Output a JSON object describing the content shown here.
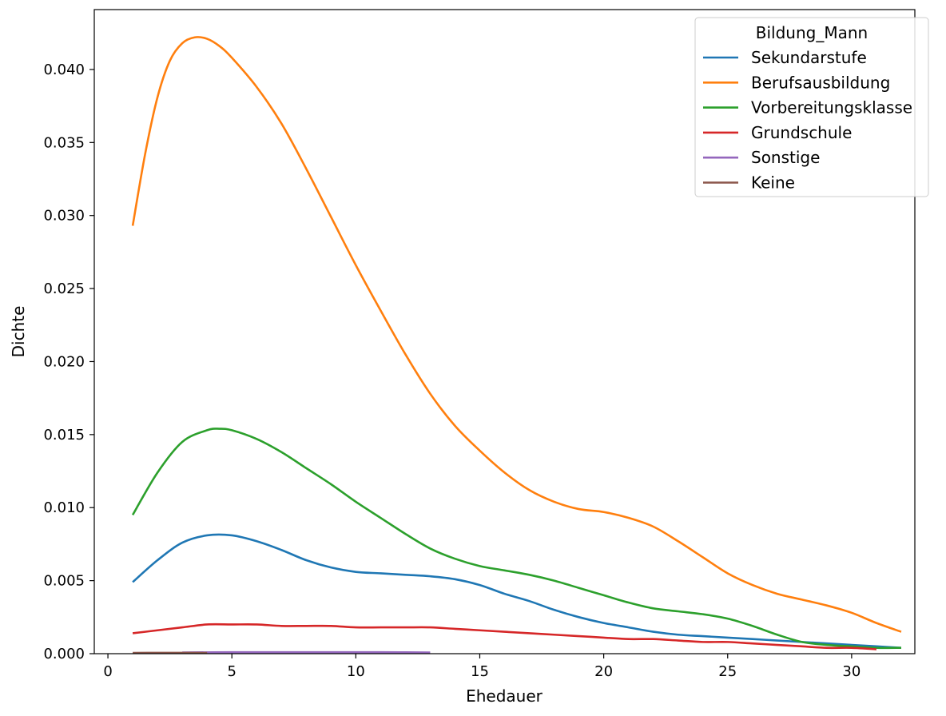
{
  "chart_data": {
    "type": "line",
    "title": "",
    "xlabel": "Ehedauer",
    "ylabel": "Dichte",
    "xlim": [
      -0.55,
      32.55
    ],
    "ylim": [
      0,
      0.0441
    ],
    "xticks": [
      0,
      5,
      10,
      15,
      20,
      25,
      30
    ],
    "xtick_labels": [
      "0",
      "5",
      "10",
      "15",
      "20",
      "25",
      "30"
    ],
    "yticks": [
      0,
      0.005,
      0.01,
      0.015,
      0.02,
      0.025,
      0.03,
      0.035,
      0.04
    ],
    "ytick_labels": [
      "0.000",
      "0.005",
      "0.010",
      "0.015",
      "0.020",
      "0.025",
      "0.030",
      "0.035",
      "0.040"
    ],
    "legend": {
      "title": "Bildung_Mann",
      "position": "top-right"
    },
    "series": [
      {
        "name": "Sekundarstufe",
        "color": "#1f77b4",
        "x": [
          1,
          2,
          3,
          4,
          5,
          6,
          7,
          8,
          9,
          10,
          11,
          12,
          13,
          14,
          15,
          16,
          17,
          18,
          19,
          20,
          21,
          22,
          23,
          24,
          25,
          26,
          27,
          28,
          29,
          30,
          31,
          32
        ],
        "y": [
          0.0049,
          0.0064,
          0.0076,
          0.0081,
          0.0081,
          0.0077,
          0.0071,
          0.0064,
          0.0059,
          0.0056,
          0.0055,
          0.0054,
          0.0053,
          0.0051,
          0.0047,
          0.0041,
          0.0036,
          0.003,
          0.0025,
          0.0021,
          0.0018,
          0.0015,
          0.0013,
          0.0012,
          0.0011,
          0.001,
          0.0009,
          0.0008,
          0.0007,
          0.0006,
          0.0005,
          0.0004
        ]
      },
      {
        "name": "Berufsausbildung",
        "color": "#ff7f0e",
        "x": [
          1,
          1.5,
          2,
          2.5,
          3,
          3.5,
          4,
          4.5,
          5,
          6,
          7,
          8,
          9,
          10,
          11,
          12,
          13,
          14,
          15,
          16,
          17,
          18,
          19,
          20,
          21,
          22,
          23,
          24,
          25,
          26,
          27,
          28,
          29,
          30,
          31,
          32
        ],
        "y": [
          0.0293,
          0.0342,
          0.0381,
          0.0406,
          0.0418,
          0.0422,
          0.0421,
          0.0416,
          0.0408,
          0.0388,
          0.0363,
          0.0332,
          0.0299,
          0.0266,
          0.0235,
          0.0205,
          0.0178,
          0.0156,
          0.0139,
          0.0124,
          0.0112,
          0.0104,
          0.0099,
          0.0097,
          0.0093,
          0.0087,
          0.0077,
          0.0066,
          0.0055,
          0.0047,
          0.0041,
          0.0037,
          0.0033,
          0.0028,
          0.0021,
          0.0015
        ]
      },
      {
        "name": "Vorbereitungsklasse",
        "color": "#2ca02c",
        "x": [
          1,
          2,
          3,
          4,
          4.5,
          5,
          6,
          7,
          8,
          9,
          10,
          11,
          12,
          13,
          14,
          15,
          16,
          17,
          18,
          19,
          20,
          21,
          22,
          23,
          24,
          25,
          26,
          27,
          28,
          29,
          30,
          31,
          32
        ],
        "y": [
          0.0095,
          0.0124,
          0.0145,
          0.0153,
          0.0154,
          0.0153,
          0.0147,
          0.0138,
          0.0127,
          0.0116,
          0.0104,
          0.0093,
          0.0082,
          0.0072,
          0.0065,
          0.006,
          0.0057,
          0.0054,
          0.005,
          0.0045,
          0.004,
          0.0035,
          0.0031,
          0.0029,
          0.0027,
          0.0024,
          0.0019,
          0.0013,
          0.0008,
          0.0006,
          0.0005,
          0.0004,
          0.0004
        ]
      },
      {
        "name": "Grundschule",
        "color": "#d62728",
        "x": [
          1,
          2,
          3,
          4,
          5,
          6,
          7,
          8,
          9,
          10,
          11,
          12,
          13,
          14,
          15,
          16,
          17,
          18,
          19,
          20,
          21,
          22,
          23,
          24,
          25,
          26,
          27,
          28,
          29,
          30,
          31
        ],
        "y": [
          0.0014,
          0.0016,
          0.0018,
          0.002,
          0.002,
          0.002,
          0.0019,
          0.0019,
          0.0019,
          0.0018,
          0.0018,
          0.0018,
          0.0018,
          0.0017,
          0.0016,
          0.0015,
          0.0014,
          0.0013,
          0.0012,
          0.0011,
          0.001,
          0.001,
          0.0009,
          0.0008,
          0.0008,
          0.0007,
          0.0006,
          0.0005,
          0.0004,
          0.0004,
          0.0003
        ]
      },
      {
        "name": "Sonstige",
        "color": "#9467bd",
        "x": [
          3,
          5,
          7,
          9,
          11,
          13
        ],
        "y": [
          8e-05,
          0.0001,
          0.0001,
          0.0001,
          0.0001,
          8e-05
        ]
      },
      {
        "name": "Keine",
        "color": "#8c564b",
        "x": [
          1,
          2,
          3,
          4
        ],
        "y": [
          5e-05,
          6e-05,
          6e-05,
          5e-05
        ]
      }
    ]
  }
}
